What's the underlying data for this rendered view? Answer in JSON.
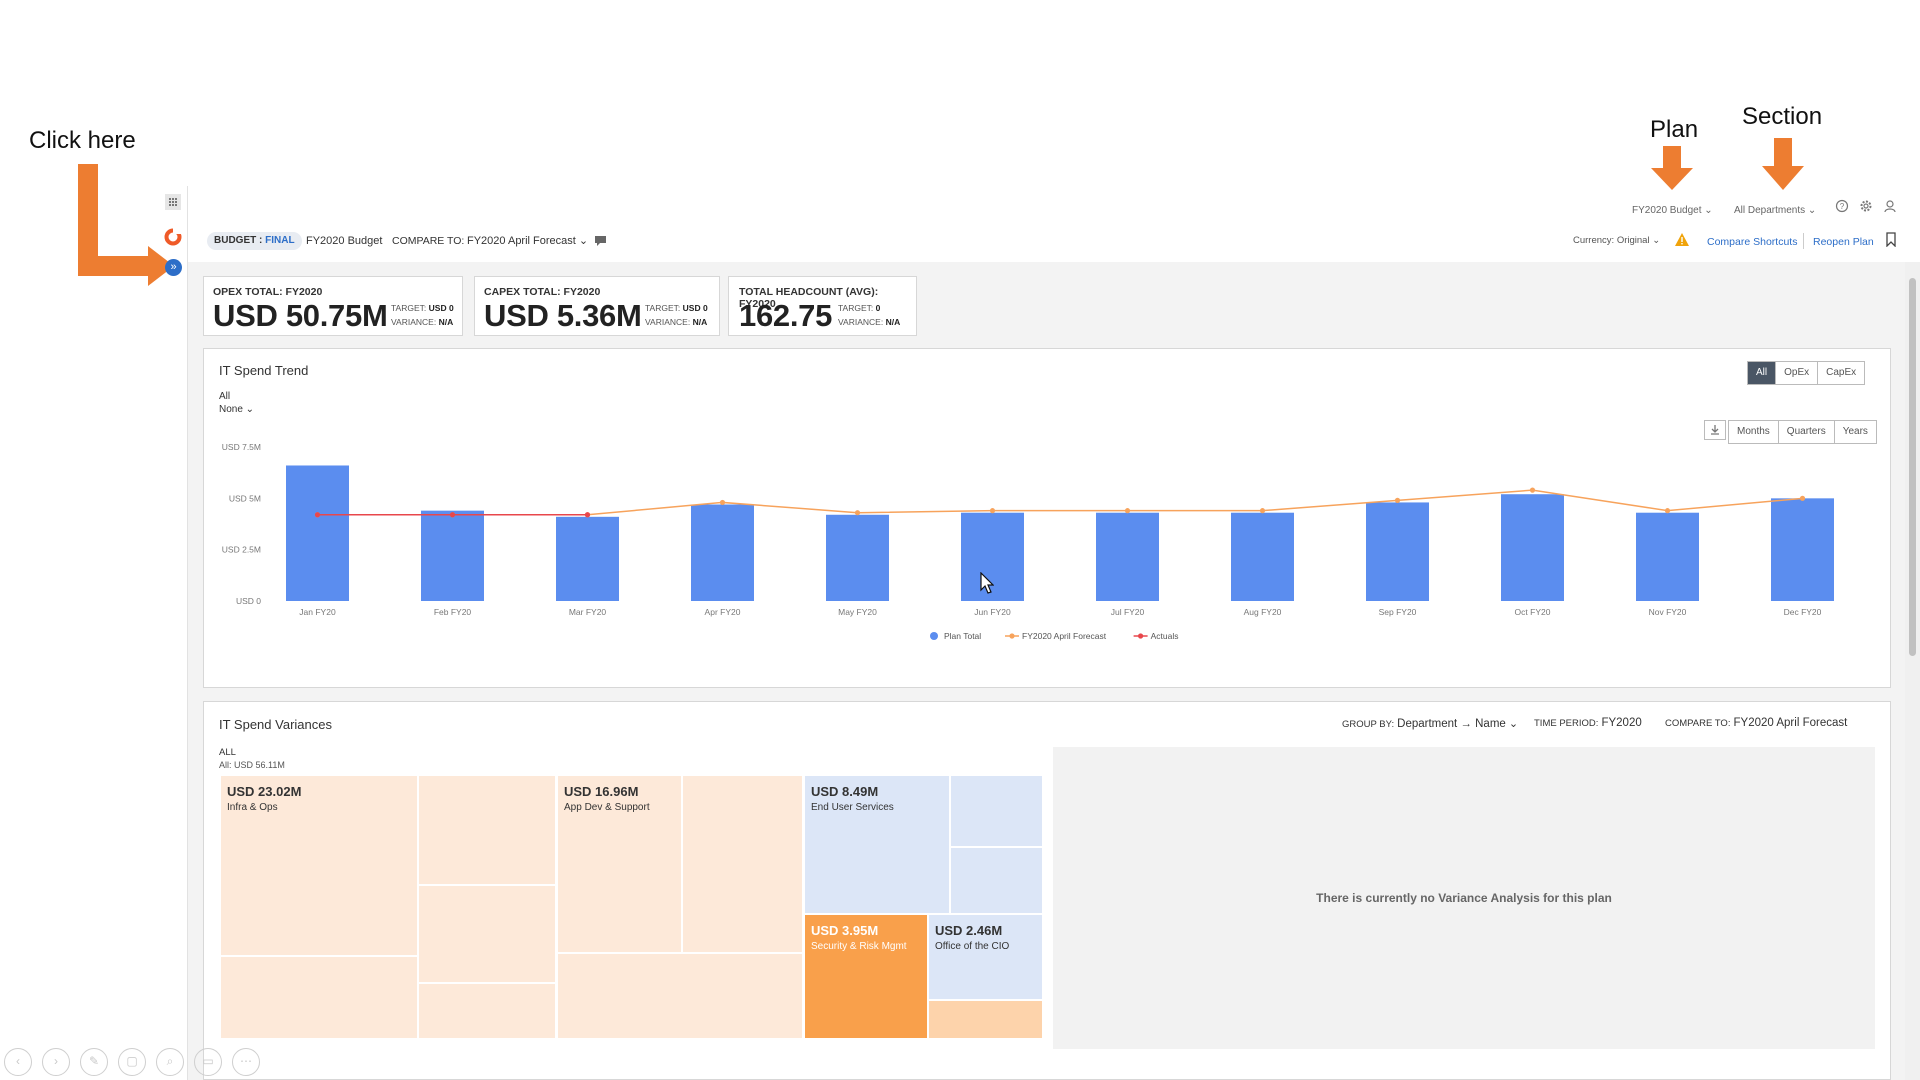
{
  "annotations": {
    "click_here": "Click here",
    "plan": "Plan",
    "section": "Section"
  },
  "topbar": {
    "plan_selector": "FY2020 Budget",
    "section_selector": "All Departments",
    "currency": "Currency: Original",
    "compare_shortcuts": "Compare Shortcuts",
    "reopen_plan": "Reopen Plan"
  },
  "header": {
    "badge_prefix": "BUDGET : ",
    "badge_status": "FINAL",
    "plan_name": "FY2020 Budget",
    "compare_label": "COMPARE TO:",
    "compare_value": "FY2020 April Forecast"
  },
  "kpis": [
    {
      "title": "OPEX TOTAL: FY2020",
      "value": "USD 50.75M",
      "target_label": "TARGET:",
      "target": "USD 0",
      "variance_label": "VARIANCE:",
      "variance": "N/A"
    },
    {
      "title": "CAPEX TOTAL: FY2020",
      "value": "USD 5.36M",
      "target_label": "TARGET:",
      "target": "USD 0",
      "variance_label": "VARIANCE:",
      "variance": "N/A"
    },
    {
      "title": "TOTAL HEADCOUNT (AVG): FY2020",
      "value": "162.75",
      "target_label": "TARGET:",
      "target": "0",
      "variance_label": "VARIANCE:",
      "variance": "N/A"
    }
  ],
  "trend": {
    "title": "IT Spend Trend",
    "filter_all": "All",
    "filter_none": "None",
    "type_buttons": [
      "All",
      "OpEx",
      "CapEx"
    ],
    "period_buttons": [
      "Months",
      "Quarters",
      "Years"
    ]
  },
  "chart_data": {
    "type": "bar",
    "categories": [
      "Jan FY20",
      "Feb FY20",
      "Mar FY20",
      "Apr FY20",
      "May FY20",
      "Jun FY20",
      "Jul FY20",
      "Aug FY20",
      "Sep FY20",
      "Oct FY20",
      "Nov FY20",
      "Dec FY20"
    ],
    "series": [
      {
        "name": "Plan Total",
        "kind": "bar",
        "color": "#5b8def",
        "values": [
          6.6,
          4.4,
          4.1,
          4.7,
          4.2,
          4.3,
          4.3,
          4.3,
          4.8,
          5.2,
          4.3,
          5.0
        ]
      },
      {
        "name": "FY2020 April Forecast",
        "kind": "line",
        "color": "#f7a35c",
        "values": [
          4.2,
          4.2,
          4.2,
          4.8,
          4.3,
          4.4,
          4.4,
          4.4,
          4.9,
          5.4,
          4.4,
          5.0
        ]
      },
      {
        "name": "Actuals",
        "kind": "line",
        "color": "#e8474c",
        "values": [
          4.2,
          4.2,
          4.2,
          null,
          null,
          null,
          null,
          null,
          null,
          null,
          null,
          null
        ]
      }
    ],
    "yticks": [
      "USD 0",
      "USD 2.5M",
      "USD 5M",
      "USD 7.5M"
    ],
    "ylim": [
      0,
      7.5
    ],
    "legend_position": "bottom"
  },
  "variances": {
    "title": "IT Spend Variances",
    "group_by_label": "GROUP BY:",
    "group_by_value": "Department → Name",
    "time_period_label": "TIME PERIOD:",
    "time_period_value": "FY2020",
    "compare_label": "COMPARE TO:",
    "compare_value": "FY2020 April Forecast",
    "scope": "ALL",
    "scope_total": "All: USD 56.11M",
    "empty_message": "There is currently no Variance Analysis for this plan",
    "treemap": [
      {
        "value": "USD 23.02M",
        "label": "Infra & Ops",
        "color": "#fde9d9"
      },
      {
        "value": "USD 16.96M",
        "label": "App Dev & Support",
        "color": "#fde9d9"
      },
      {
        "value": "USD 8.49M",
        "label": "End User Services",
        "color": "#dce6f7"
      },
      {
        "value": "USD 3.95M",
        "label": "Security & Risk Mgmt",
        "color": "#f9a04b"
      },
      {
        "value": "USD 2.46M",
        "label": "Office of the CIO",
        "color": "#dce6f7"
      }
    ]
  }
}
